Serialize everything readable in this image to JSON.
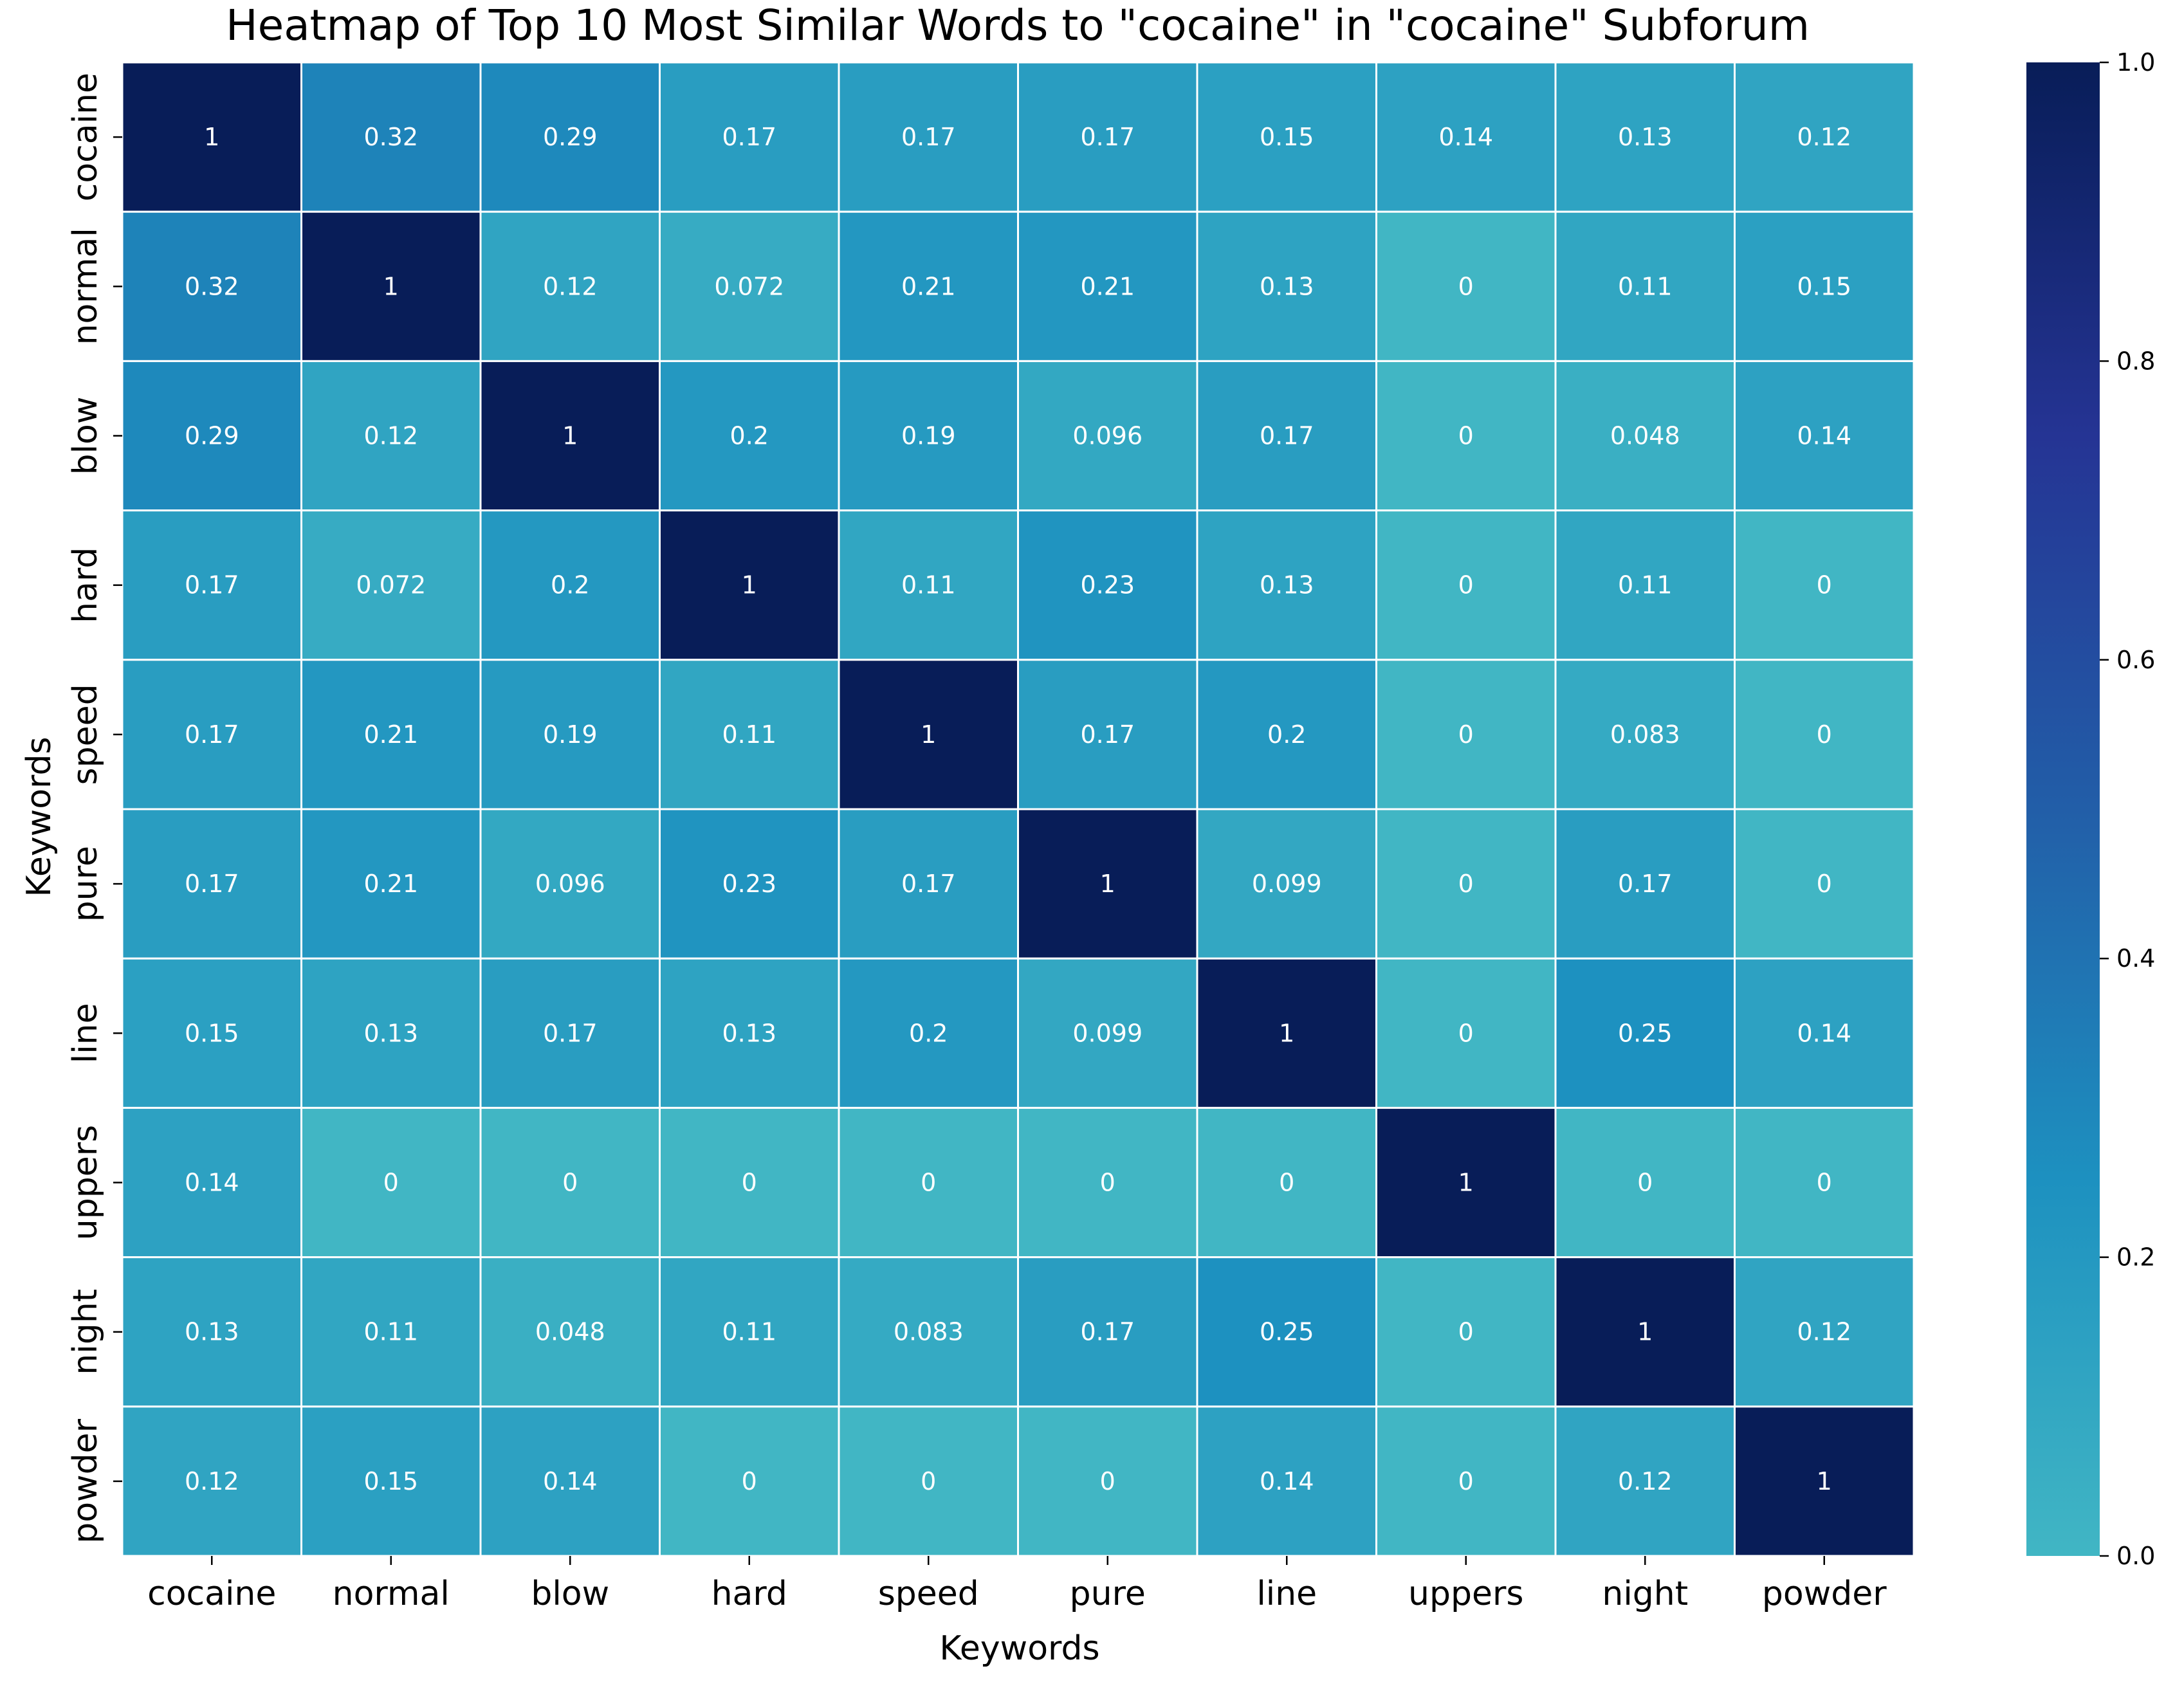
{
  "chart_data": {
    "type": "heatmap",
    "title": "Heatmap of Top 10 Most Similar Words to \"cocaine\" in \"cocaine\" Subforum",
    "xlabel": "Keywords",
    "ylabel": "Keywords",
    "x_categories": [
      "cocaine",
      "normal",
      "blow",
      "hard",
      "speed",
      "pure",
      "line",
      "uppers",
      "night",
      "powder"
    ],
    "y_categories": [
      "cocaine",
      "normal",
      "blow",
      "hard",
      "speed",
      "pure",
      "line",
      "uppers",
      "night",
      "powder"
    ],
    "values": [
      [
        1,
        0.32,
        0.29,
        0.17,
        0.17,
        0.17,
        0.15,
        0.14,
        0.13,
        0.12
      ],
      [
        0.32,
        1,
        0.12,
        0.072,
        0.21,
        0.21,
        0.13,
        0,
        0.11,
        0.15
      ],
      [
        0.29,
        0.12,
        1,
        0.2,
        0.19,
        0.096,
        0.17,
        0,
        0.048,
        0.14
      ],
      [
        0.17,
        0.072,
        0.2,
        1,
        0.11,
        0.23,
        0.13,
        0,
        0.11,
        0
      ],
      [
        0.17,
        0.21,
        0.19,
        0.11,
        1,
        0.17,
        0.2,
        0,
        0.083,
        0
      ],
      [
        0.17,
        0.21,
        0.096,
        0.23,
        0.17,
        1,
        0.099,
        0,
        0.17,
        0
      ],
      [
        0.15,
        0.13,
        0.17,
        0.13,
        0.2,
        0.099,
        1,
        0,
        0.25,
        0.14
      ],
      [
        0.14,
        0,
        0,
        0,
        0,
        0,
        0,
        1,
        0,
        0
      ],
      [
        0.13,
        0.11,
        0.048,
        0.11,
        0.083,
        0.17,
        0.25,
        0,
        1,
        0.12
      ],
      [
        0.12,
        0.15,
        0.14,
        0,
        0,
        0,
        0.14,
        0,
        0.12,
        1
      ]
    ],
    "value_labels": [
      [
        "1",
        "0.32",
        "0.29",
        "0.17",
        "0.17",
        "0.17",
        "0.15",
        "0.14",
        "0.13",
        "0.12"
      ],
      [
        "0.32",
        "1",
        "0.12",
        "0.072",
        "0.21",
        "0.21",
        "0.13",
        "0",
        "0.11",
        "0.15"
      ],
      [
        "0.29",
        "0.12",
        "1",
        "0.2",
        "0.19",
        "0.096",
        "0.17",
        "0",
        "0.048",
        "0.14"
      ],
      [
        "0.17",
        "0.072",
        "0.2",
        "1",
        "0.11",
        "0.23",
        "0.13",
        "0",
        "0.11",
        "0"
      ],
      [
        "0.17",
        "0.21",
        "0.19",
        "0.11",
        "1",
        "0.17",
        "0.2",
        "0",
        "0.083",
        "0"
      ],
      [
        "0.17",
        "0.21",
        "0.096",
        "0.23",
        "0.17",
        "1",
        "0.099",
        "0",
        "0.17",
        "0"
      ],
      [
        "0.15",
        "0.13",
        "0.17",
        "0.13",
        "0.2",
        "0.099",
        "1",
        "0",
        "0.25",
        "0.14"
      ],
      [
        "0.14",
        "0",
        "0",
        "0",
        "0",
        "0",
        "0",
        "1",
        "0",
        "0"
      ],
      [
        "0.13",
        "0.11",
        "0.048",
        "0.11",
        "0.083",
        "0.17",
        "0.25",
        "0",
        "1",
        "0.12"
      ],
      [
        "0.12",
        "0.15",
        "0.14",
        "0",
        "0",
        "0",
        "0.14",
        "0",
        "0.12",
        "1"
      ]
    ],
    "color_range": [
      0,
      1
    ],
    "colorbar_ticks": [
      "0.0",
      "0.2",
      "0.4",
      "0.6",
      "0.8",
      "1.0"
    ],
    "colormap": [
      "#41b6c4",
      "#1d91c0",
      "#225ea8",
      "#253494",
      "#081d58"
    ],
    "cell_text_color": "#ffffff",
    "grid_line_color": "#ffffff",
    "grid": false,
    "legend": "colorbar-right"
  }
}
